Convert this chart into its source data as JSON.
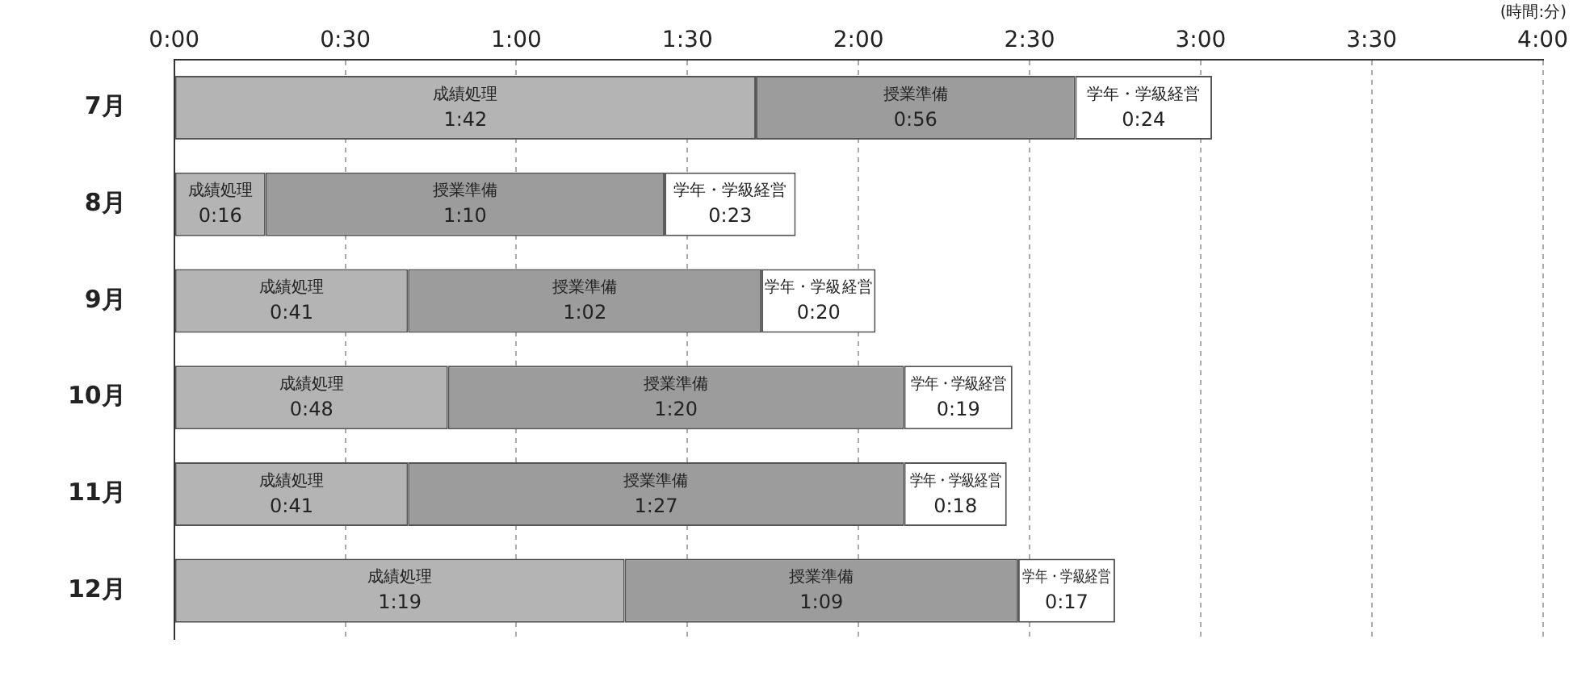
{
  "chart_data": {
    "type": "bar",
    "orientation": "horizontal",
    "stacked": true,
    "categories": [
      "7月",
      "8月",
      "9月",
      "10月",
      "11月",
      "12月"
    ],
    "series": [
      {
        "name": "成績処理",
        "color": "#b4b4b4",
        "values": [
          102,
          16,
          41,
          48,
          41,
          79
        ],
        "value_labels": [
          "1:42",
          "0:16",
          "0:41",
          "0:48",
          "0:41",
          "1:19"
        ]
      },
      {
        "name": "授業準備",
        "color": "#9c9c9c",
        "values": [
          56,
          70,
          62,
          80,
          87,
          69
        ],
        "value_labels": [
          "0:56",
          "1:10",
          "1:02",
          "1:20",
          "1:27",
          "1:09"
        ]
      },
      {
        "name": "学年・学級経営",
        "color": "#ffffff",
        "values": [
          24,
          23,
          20,
          19,
          18,
          17
        ],
        "value_labels": [
          "0:24",
          "0:23",
          "0:20",
          "0:19",
          "0:18",
          "0:17"
        ]
      }
    ],
    "xlim": [
      0,
      240
    ],
    "xticks": [
      {
        "value": 0,
        "label": "0:00"
      },
      {
        "value": 30,
        "label": "0:30"
      },
      {
        "value": 60,
        "label": "1:00"
      },
      {
        "value": 90,
        "label": "1:30"
      },
      {
        "value": 120,
        "label": "2:00"
      },
      {
        "value": 150,
        "label": "2:30"
      },
      {
        "value": 180,
        "label": "3:00"
      },
      {
        "value": 210,
        "label": "3:30"
      },
      {
        "value": 240,
        "label": "4:00"
      }
    ],
    "grid": "x",
    "legend": false,
    "annotations": [
      "(時間:分)"
    ]
  }
}
